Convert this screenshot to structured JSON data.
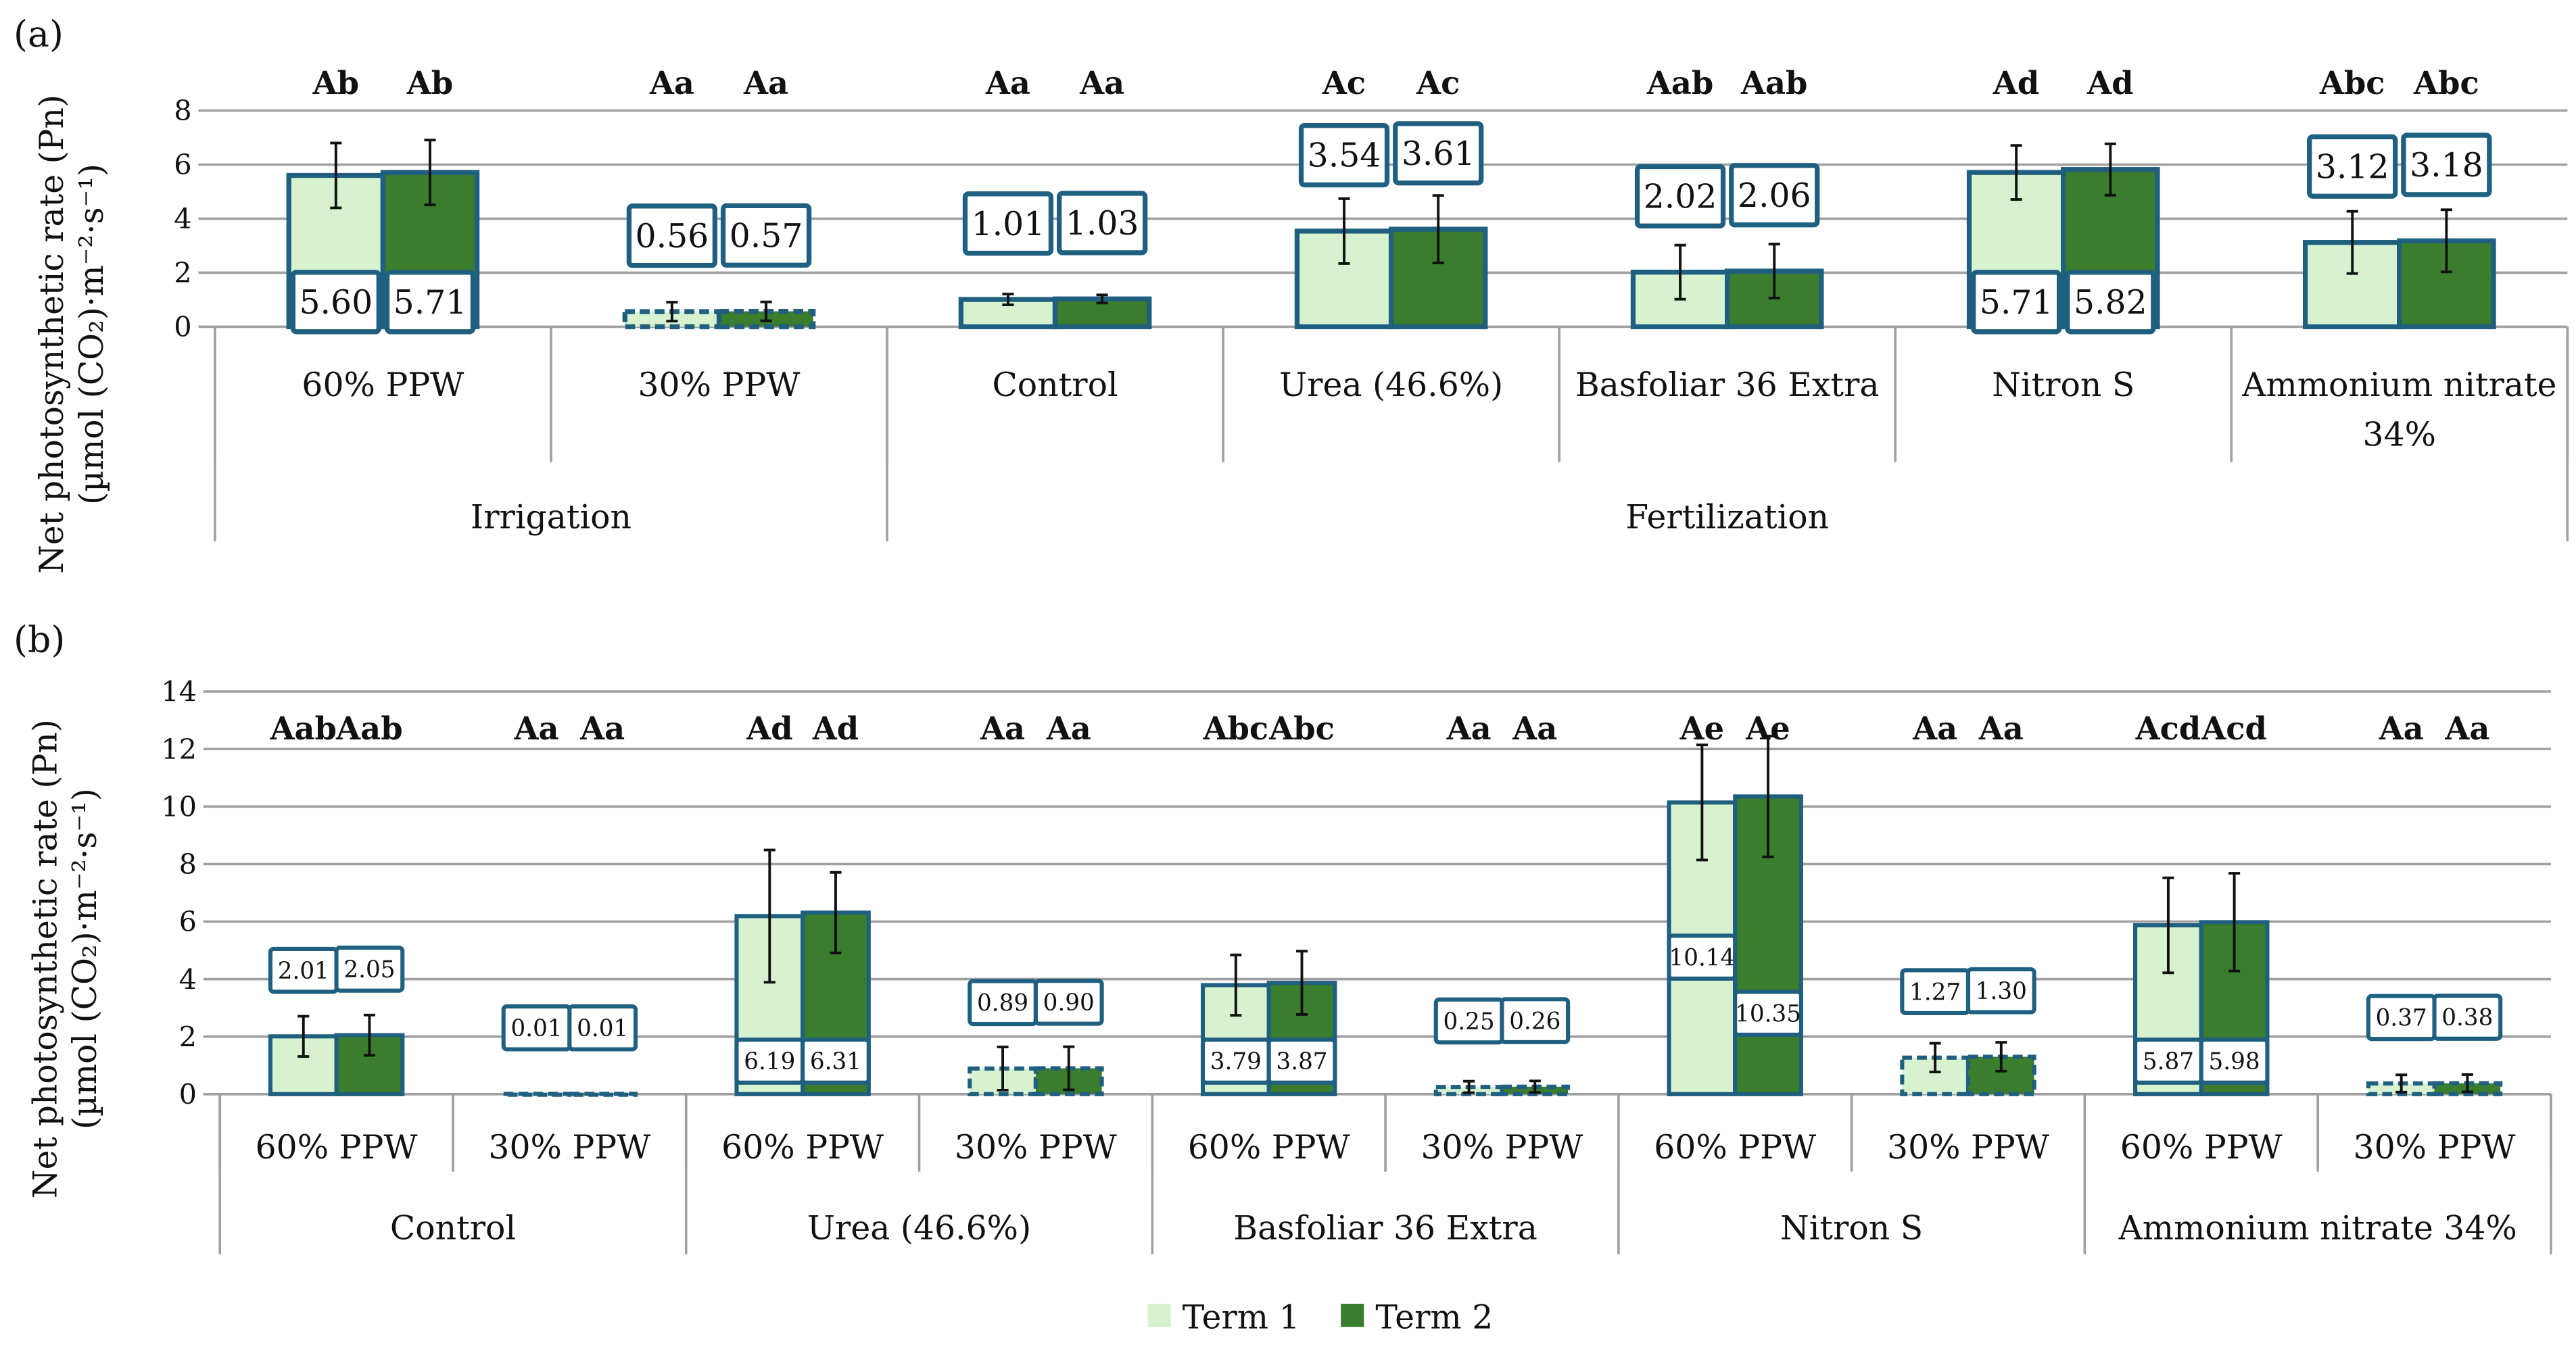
{
  "colors": {
    "term1": "#d8f2d0",
    "term2": "#3a7d2c",
    "border": "#1f5f80",
    "grid": "#a0a0a0",
    "error": "#111111"
  },
  "legend": [
    "Term 1",
    "Term 2"
  ],
  "chart_data": [
    {
      "type": "bar",
      "panel_label": "(a)",
      "ylabel": [
        "Net photosynthetic rate (Pn)",
        "(µmol (CO₂)·m⁻²·s⁻¹)"
      ],
      "ylim": [
        0,
        8
      ],
      "yticks": [
        0,
        2,
        4,
        6,
        8
      ],
      "grid": true,
      "categories": [
        "60% PPW",
        "30% PPW",
        "Control",
        "Urea (46.6%)",
        "Basfoliar 36 Extra",
        "Nitron S",
        [
          "Ammonium nitrate",
          "34%"
        ]
      ],
      "groups": [
        {
          "label": "Irrigation",
          "span": 2
        },
        {
          "label": "Fertilization",
          "span": 5
        }
      ],
      "series": [
        {
          "name": "Term 1",
          "values": [
            5.6,
            0.56,
            1.01,
            3.54,
            2.02,
            5.71,
            3.12
          ],
          "errors": [
            1.2,
            0.35,
            0.2,
            1.2,
            1.0,
            1.0,
            1.15
          ],
          "labels": [
            "5.60",
            "0.56",
            "1.01",
            "3.54",
            "2.02",
            "5.71",
            "3.12"
          ],
          "letters": [
            "Ab",
            "Aa",
            "Aa",
            "Ac",
            "Aab",
            "Ad",
            "Abc"
          ]
        },
        {
          "name": "Term 2",
          "values": [
            5.71,
            0.57,
            1.03,
            3.61,
            2.06,
            5.82,
            3.18
          ],
          "errors": [
            1.2,
            0.35,
            0.15,
            1.25,
            1.0,
            0.95,
            1.15
          ],
          "labels": [
            "5.71",
            "0.57",
            "1.03",
            "3.61",
            "2.06",
            "5.82",
            "3.18"
          ],
          "letters": [
            "Ab",
            "Aa",
            "Aa",
            "Ac",
            "Aab",
            "Ad",
            "Abc"
          ]
        }
      ],
      "label_position": [
        "inside",
        "above",
        "above",
        "above",
        "above",
        "inside",
        "above"
      ],
      "dashed": [
        false,
        true,
        false,
        false,
        false,
        false,
        false
      ]
    },
    {
      "type": "bar",
      "panel_label": "(b)",
      "ylabel": [
        "Net photosynthetic rate (Pn)",
        "(µmol (CO₂)·m⁻²·s⁻¹)"
      ],
      "ylim": [
        0,
        14
      ],
      "yticks": [
        0,
        2,
        4,
        6,
        8,
        10,
        12,
        14
      ],
      "grid": true,
      "categories": [
        "60% PPW",
        "30% PPW",
        "60% PPW",
        "30% PPW",
        "60% PPW",
        "30% PPW",
        "60% PPW",
        "30% PPW",
        "60% PPW",
        "30% PPW"
      ],
      "groups": [
        {
          "label": "Control",
          "span": 2
        },
        {
          "label": "Urea (46.6%)",
          "span": 2
        },
        {
          "label": "Basfoliar 36 Extra",
          "span": 2
        },
        {
          "label": "Nitron S",
          "span": 2
        },
        {
          "label": "Ammonium nitrate 34%",
          "span": 2
        }
      ],
      "series": [
        {
          "name": "Term 1",
          "values": [
            2.01,
            0.01,
            6.19,
            0.89,
            3.79,
            0.25,
            10.14,
            1.27,
            5.87,
            0.37
          ],
          "errors": [
            0.7,
            0,
            2.3,
            0.75,
            1.05,
            0.2,
            2.0,
            0.5,
            1.65,
            0.3
          ],
          "labels": [
            "2.01",
            "0.01",
            "6.19",
            "0.89",
            "3.79",
            "0.25",
            "10.14",
            "1.27",
            "5.87",
            "0.37"
          ],
          "letters": [
            "Aab",
            "Aa",
            "Ad",
            "Aa",
            "Abc",
            "Aa",
            "Ae",
            "Aa",
            "Acd",
            "Aa"
          ]
        },
        {
          "name": "Term 2",
          "values": [
            2.05,
            0.01,
            6.31,
            0.9,
            3.87,
            0.26,
            10.35,
            1.3,
            5.98,
            0.38
          ],
          "errors": [
            0.7,
            0,
            1.4,
            0.75,
            1.1,
            0.2,
            2.1,
            0.5,
            1.7,
            0.3
          ],
          "labels": [
            "2.05",
            "0.01",
            "6.31",
            "0.90",
            "3.87",
            "0.26",
            "10.35",
            "1.30",
            "5.98",
            "0.38"
          ],
          "letters": [
            "Aab",
            "Aa",
            "Ad",
            "Aa",
            "Abc",
            "Aa",
            "Ae",
            "Aa",
            "Acd",
            "Aa"
          ]
        }
      ],
      "label_position": [
        "above",
        "above",
        "inside",
        "above",
        "inside",
        "above",
        "inside",
        "above",
        "inside",
        "above"
      ],
      "dashed": [
        false,
        true,
        false,
        true,
        false,
        true,
        false,
        true,
        false,
        true
      ]
    }
  ]
}
